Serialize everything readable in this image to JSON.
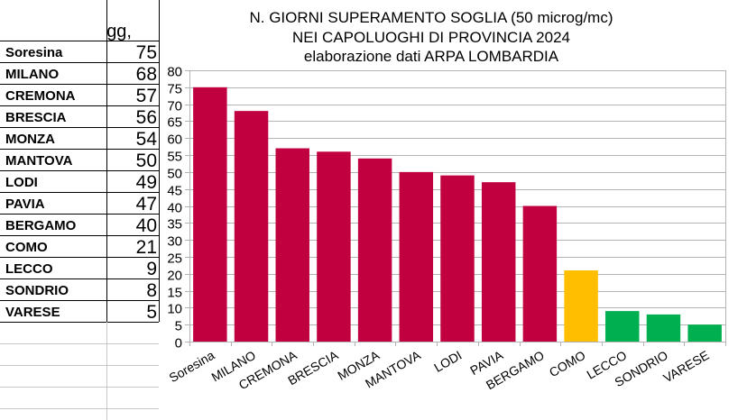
{
  "table": {
    "header": "gg,",
    "rows": [
      {
        "city": "Soresina",
        "days": "75"
      },
      {
        "city": "MILANO",
        "days": "68"
      },
      {
        "city": "CREMONA",
        "days": "57"
      },
      {
        "city": "BRESCIA",
        "days": "56"
      },
      {
        "city": "MONZA",
        "days": "54"
      },
      {
        "city": "MANTOVA",
        "days": "50"
      },
      {
        "city": "LODI",
        "days": "49"
      },
      {
        "city": "PAVIA",
        "days": "47"
      },
      {
        "city": "BERGAMO",
        "days": "40"
      },
      {
        "city": "COMO",
        "days": "21"
      },
      {
        "city": "LECCO",
        "days": "9"
      },
      {
        "city": "SONDRIO",
        "days": "8"
      },
      {
        "city": "VARESE",
        "days": "5"
      }
    ]
  },
  "chart_data": {
    "type": "bar",
    "title_lines": [
      "N. GIORNI SUPERAMENTO SOGLIA (50 microg/mc)",
      "NEI CAPOLUOGHI DI PROVINCIA 2024",
      "elaborazione dati ARPA LOMBARDIA"
    ],
    "categories": [
      "Soresina",
      "MILANO",
      "CREMONA",
      "BRESCIA",
      "MONZA",
      "MANTOVA",
      "LODI",
      "PAVIA",
      "BERGAMO",
      "COMO",
      "LECCO",
      "SONDRIO",
      "VARESE"
    ],
    "values": [
      75,
      68,
      57,
      56,
      54,
      50,
      49,
      47,
      40,
      21,
      9,
      8,
      5
    ],
    "bar_colors": [
      "#c0003f",
      "#c0003f",
      "#c0003f",
      "#c0003f",
      "#c0003f",
      "#c0003f",
      "#c0003f",
      "#c0003f",
      "#c0003f",
      "#ffbf00",
      "#00b050",
      "#00b050",
      "#00b050"
    ],
    "ylim": [
      0,
      80
    ],
    "yticks": [
      0,
      5,
      10,
      15,
      20,
      25,
      30,
      35,
      40,
      45,
      50,
      55,
      60,
      65,
      70,
      75,
      80
    ],
    "grid": true,
    "xlabel": "",
    "ylabel": ""
  }
}
